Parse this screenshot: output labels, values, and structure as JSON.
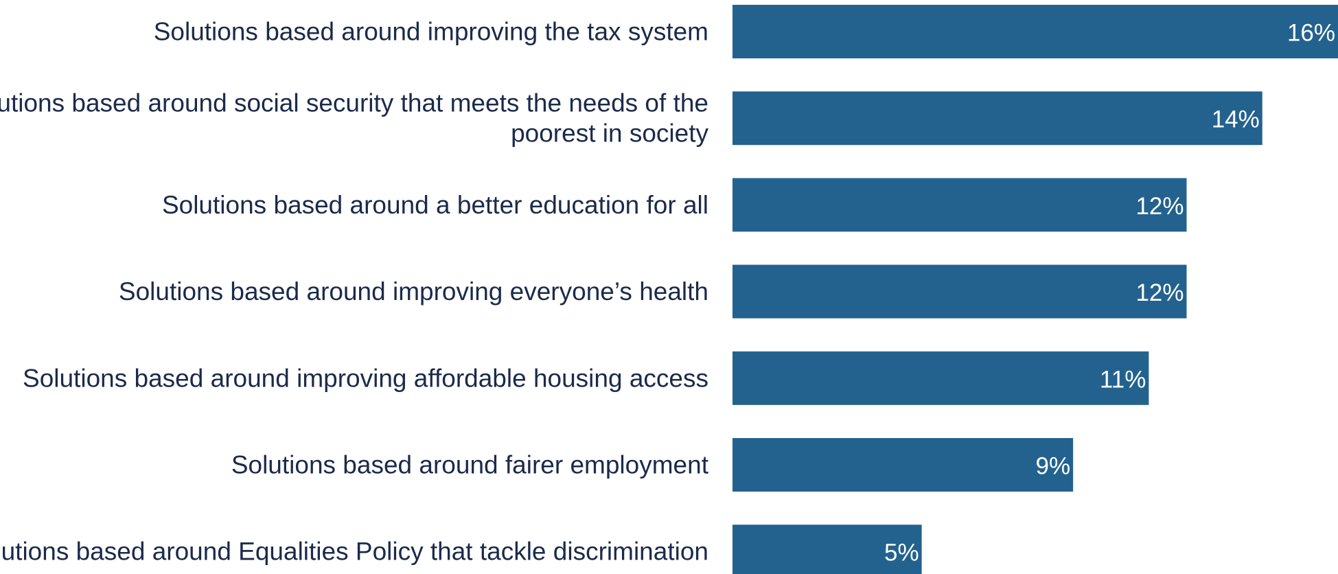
{
  "chart_data": {
    "type": "bar",
    "orientation": "horizontal",
    "categories": [
      [
        "Solutions based around improving the tax system"
      ],
      [
        "Solutions based around social security that meets the needs of the",
        "poorest in society"
      ],
      [
        "Solutions based around a better education for all"
      ],
      [
        "Solutions based around improving everyone’s health"
      ],
      [
        "Solutions based around improving affordable housing access"
      ],
      [
        "Solutions based around fairer employment"
      ],
      [
        "Solutions based around Equalities Policy that tackle discrimination"
      ]
    ],
    "values": [
      16,
      14,
      12,
      12,
      11,
      9,
      5
    ],
    "value_labels": [
      "16%",
      "14%",
      "12%",
      "12%",
      "11%",
      "9%",
      "5%"
    ],
    "unit": "%",
    "bar_color": "#23628e",
    "label_color": "#1b2a4a",
    "value_label_color": "#ffffff",
    "grid": false,
    "legend": "none",
    "title": "",
    "xlabel": "",
    "ylabel": ""
  }
}
